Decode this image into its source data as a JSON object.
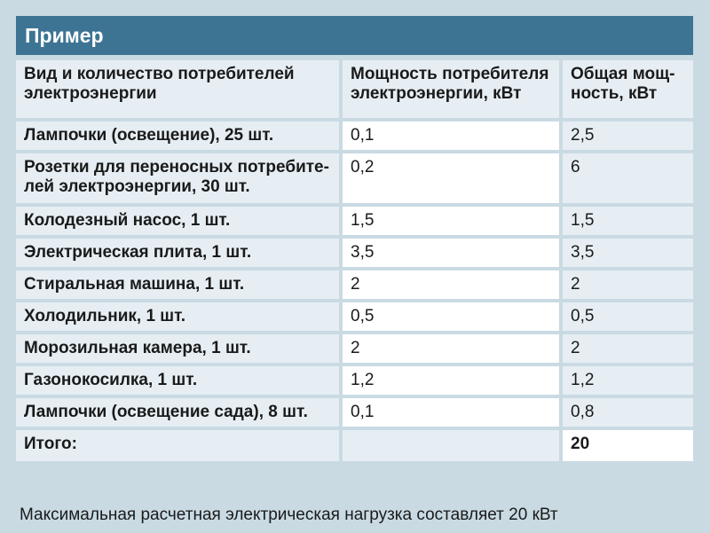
{
  "title": "Пример",
  "table": {
    "headers": [
      "Вид и количество потребителей электроэнергии",
      "Мощность потребителя электроэнергии, кВт",
      "Общая мощ-ность, кВт"
    ],
    "header_lines": {
      "c1": [
        "Вид и количество потребителей",
        "электроэнергии"
      ],
      "c2": [
        "Мощность потребителя",
        "электроэнергии, кВт"
      ],
      "c3": [
        "Общая мощ-",
        "ность, кВт"
      ]
    },
    "rows": [
      {
        "name": "Лампочки (освещение), 25 шт.",
        "power": "0,1",
        "total": "2,5"
      },
      {
        "name": "Розетки для переносных потребите-лей электроэнергии, 30 шт.",
        "name_lines": [
          "Розетки для переносных потребите-",
          "лей электроэнергии, 30 шт."
        ],
        "power": "0,2",
        "total": "6"
      },
      {
        "name": "Колодезный насос, 1 шт.",
        "power": "1,5",
        "total": "1,5"
      },
      {
        "name": "Электрическая плита, 1 шт.",
        "power": "3,5",
        "total": "3,5"
      },
      {
        "name": "Стиральная машина, 1 шт.",
        "power": "2",
        "total": "2"
      },
      {
        "name": "Холодильник, 1 шт.",
        "power": "0,5",
        "total": "0,5"
      },
      {
        "name": "Морозильная камера, 1 шт.",
        "power": "2",
        "total": "2"
      },
      {
        "name": "Газонокосилка, 1 шт.",
        "power": "1,2",
        "total": "1,2"
      },
      {
        "name": "Лампочки (освещение сада), 8 шт.",
        "power": "0,1",
        "total": "0,8"
      }
    ],
    "total_row": {
      "label": "Итого:",
      "power": "",
      "total": "20"
    }
  },
  "footer": "Максимальная расчетная электрическая нагрузка составляет 20 кВт",
  "colors": {
    "background": "#c9dae3",
    "header_bar": "#3d7494",
    "cell_light": "#e6eef3",
    "cell_white": "#ffffff"
  }
}
